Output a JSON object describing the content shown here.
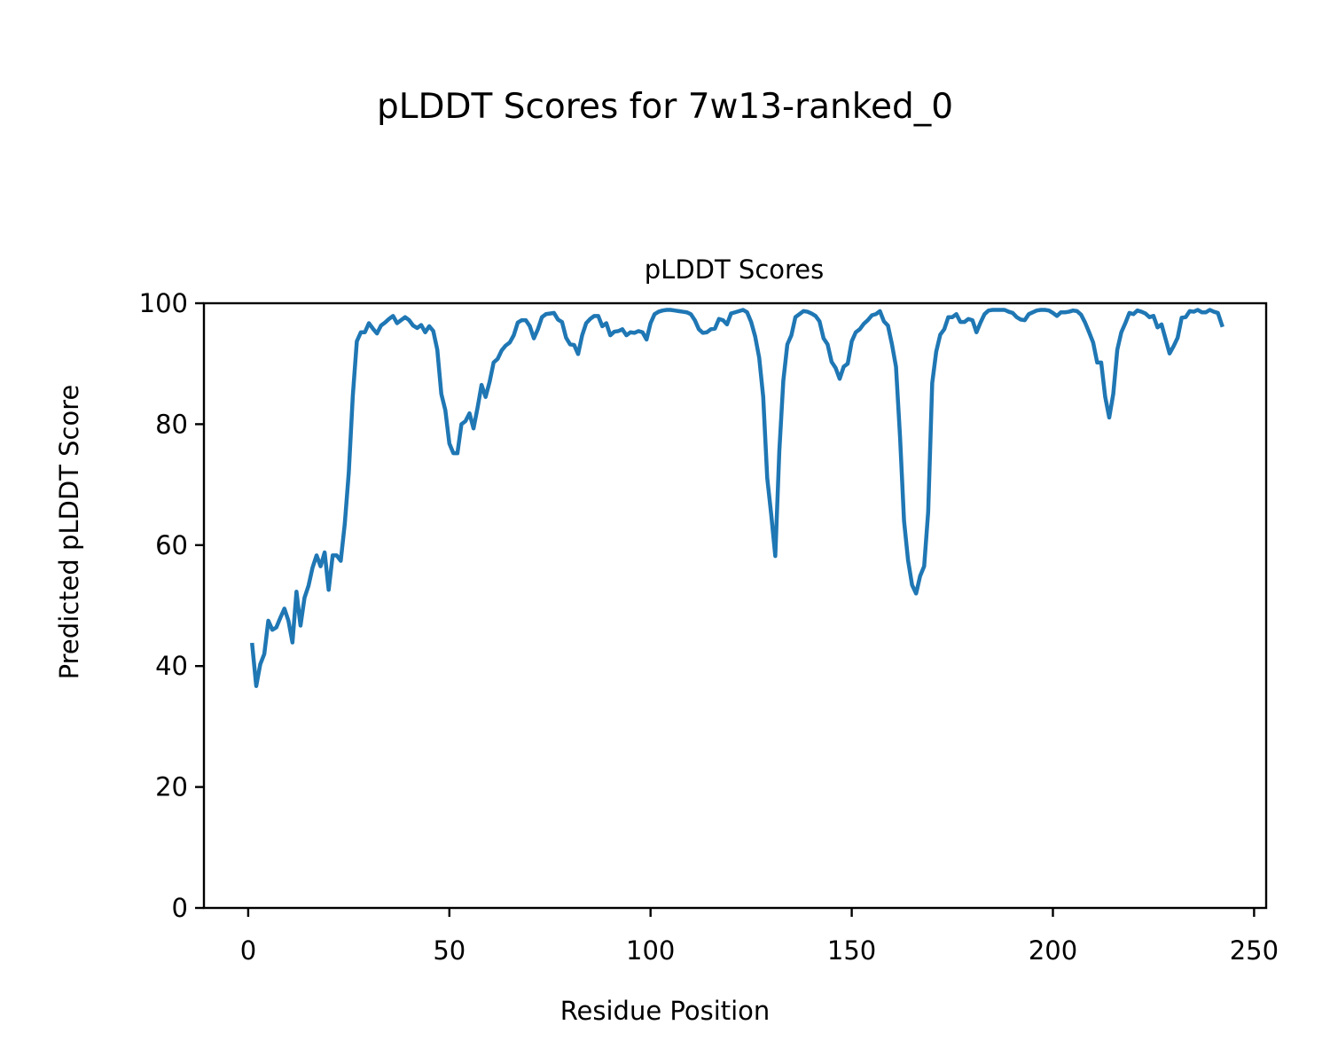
{
  "chart_data": {
    "type": "line",
    "suptitle": "pLDDT Scores for 7w13-ranked_0",
    "title": "pLDDT Scores",
    "xlabel": "Residue Position",
    "ylabel": "Predicted pLDDT Score",
    "xlim": [
      -11,
      253
    ],
    "ylim": [
      0,
      100
    ],
    "xticks": [
      0,
      50,
      100,
      150,
      200,
      250
    ],
    "yticks": [
      0,
      20,
      40,
      60,
      80,
      100
    ],
    "line_color": "#1f77b4",
    "legend": "none",
    "grid": false,
    "series": [
      {
        "x": [
          1,
          2,
          3,
          4,
          5,
          6,
          7,
          8,
          9,
          10,
          11,
          12,
          13,
          14,
          15,
          16,
          17,
          18,
          19,
          20,
          21,
          22,
          23,
          24,
          25,
          26,
          27,
          28,
          29,
          30,
          31,
          32,
          33,
          34,
          35,
          36,
          37,
          38,
          39,
          40,
          41,
          42,
          43,
          44,
          45,
          46,
          47,
          48,
          49,
          50,
          51,
          52,
          53,
          54,
          55,
          56,
          57,
          58,
          59,
          60,
          61,
          62,
          63,
          64,
          65,
          66,
          67,
          68,
          69,
          70,
          71,
          72,
          73,
          74,
          75,
          76,
          77,
          78,
          79,
          80,
          81,
          82,
          83,
          84,
          85,
          86,
          87,
          88,
          89,
          90,
          91,
          92,
          93,
          94,
          95,
          96,
          97,
          98,
          99,
          100,
          101,
          102,
          103,
          104,
          105,
          106,
          107,
          108,
          109,
          110,
          111,
          112,
          113,
          114,
          115,
          116,
          117,
          118,
          119,
          120,
          121,
          122,
          123,
          124,
          125,
          126,
          127,
          128,
          129,
          130,
          131,
          132,
          133,
          134,
          135,
          136,
          137,
          138,
          139,
          140,
          141,
          142,
          143,
          144,
          145,
          146,
          147,
          148,
          149,
          150,
          151,
          152,
          153,
          154,
          155,
          156,
          157,
          158,
          159,
          160,
          161,
          162,
          163,
          164,
          165,
          166,
          167,
          168,
          169,
          170,
          171,
          172,
          173,
          174,
          175,
          176,
          177,
          178,
          179,
          180,
          181,
          182,
          183,
          184,
          185,
          186,
          187,
          188,
          189,
          190,
          191,
          192,
          193,
          194,
          195,
          196,
          197,
          198,
          199,
          200,
          201,
          202,
          203,
          204,
          205,
          206,
          207,
          208,
          209,
          210,
          211,
          212,
          213,
          214,
          215,
          216,
          217,
          218,
          219,
          220,
          221,
          222,
          223,
          224,
          225,
          226,
          227,
          228,
          229,
          230,
          231,
          232,
          233,
          234,
          235,
          236,
          237,
          238,
          239,
          240,
          241,
          242
        ],
        "y": [
          43.5,
          36.7,
          40.3,
          42,
          47.5,
          46,
          46.4,
          48,
          49.5,
          47.5,
          43.9,
          52.3,
          46.7,
          51.3,
          53.3,
          56.3,
          58.3,
          56.5,
          58.8,
          52.6,
          58.3,
          58.3,
          57.4,
          63.5,
          72,
          84.7,
          93.7,
          95.2,
          95.2,
          96.7,
          95.8,
          95,
          96.3,
          96.8,
          97.4,
          97.9,
          96.7,
          97.2,
          97.7,
          97.2,
          96.3,
          95.9,
          96.4,
          95.2,
          96.2,
          95.4,
          92.3,
          85,
          82.3,
          76.8,
          75.2,
          75.2,
          80,
          80.5,
          81.8,
          79.3,
          82.7,
          86.5,
          84.5,
          87,
          90.2,
          90.8,
          92.2,
          93,
          93.5,
          94.7,
          96.8,
          97.2,
          97.2,
          96.2,
          94.2,
          95.7,
          97.7,
          98.2,
          98.3,
          98.4,
          97.3,
          96.9,
          94.3,
          93.2,
          93.1,
          91.6,
          94.7,
          96.7,
          97.4,
          97.9,
          97.9,
          96.2,
          96.7,
          94.7,
          95.3,
          95.4,
          95.7,
          94.7,
          95.2,
          95.1,
          95.4,
          95.2,
          94,
          96.7,
          98.2,
          98.6,
          98.8,
          98.9,
          98.9,
          98.8,
          98.7,
          98.6,
          98.5,
          98.2,
          97.2,
          95.7,
          95.1,
          95.2,
          95.7,
          95.8,
          97.4,
          97.2,
          96.5,
          98.3,
          98.5,
          98.7,
          98.9,
          98.5,
          96.9,
          94.5,
          91,
          84.5,
          71.1,
          65,
          58.2,
          75.5,
          87.2,
          93.2,
          94.7,
          97.7,
          98.2,
          98.7,
          98.6,
          98.3,
          97.9,
          97,
          94.2,
          93.2,
          90.3,
          89.3,
          87.5,
          89.5,
          90,
          93.7,
          95.2,
          95.7,
          96.6,
          97.2,
          98,
          98.2,
          98.7,
          97,
          96.3,
          93.2,
          89.5,
          78,
          64,
          57.5,
          53.4,
          52,
          54.9,
          56.5,
          65.5,
          86.8,
          92,
          94.8,
          95.7,
          97.7,
          97.7,
          98.2,
          96.9,
          96.9,
          97.4,
          97.2,
          95.2,
          96.8,
          98.2,
          98.8,
          98.9,
          98.9,
          98.9,
          98.9,
          98.6,
          98.4,
          97.7,
          97.3,
          97.2,
          98.2,
          98.5,
          98.8,
          98.9,
          98.9,
          98.8,
          98.4,
          97.9,
          98.5,
          98.5,
          98.6,
          98.8,
          98.7,
          98.1,
          96.8,
          95.2,
          93.5,
          90.2,
          90.2,
          84.5,
          81.1,
          85,
          92.3,
          95.2,
          96.7,
          98.4,
          98.2,
          98.8,
          98.6,
          98.3,
          97.7,
          97.9,
          96,
          96.5,
          94.1,
          91.7,
          92.9,
          94.3,
          97.6,
          97.7,
          98.7,
          98.6,
          98.9,
          98.5,
          98.5,
          98.9,
          98.6,
          98.4,
          96.4
        ]
      }
    ]
  }
}
